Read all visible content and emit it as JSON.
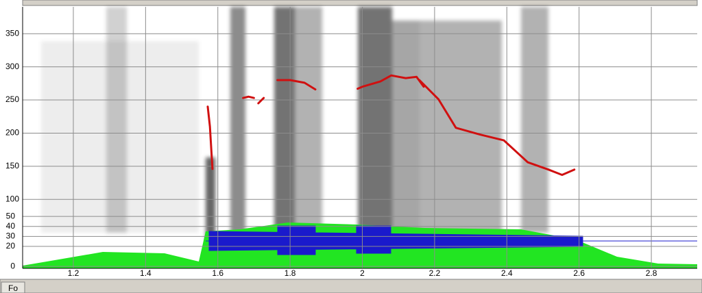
{
  "chart_data": {
    "type": "line",
    "x": [
      1.572,
      1.578,
      1.585,
      null,
      1.67,
      1.685,
      1.7,
      null,
      1.712,
      1.727,
      null,
      1.765,
      1.8,
      1.84,
      1.87,
      null,
      1.987,
      2.0,
      2.05,
      2.08,
      2.12,
      2.15,
      2.17,
      null,
      2.158,
      2.211,
      2.259,
      2.325,
      2.392,
      2.458,
      2.515,
      2.553,
      2.587
    ],
    "series": [
      {
        "color": "#d01010",
        "values": [
          240,
          210,
          146,
          null,
          253,
          255,
          253,
          null,
          245,
          253,
          null,
          280,
          280,
          276,
          266,
          null,
          267,
          270,
          278,
          287,
          283,
          285,
          270,
          null,
          280,
          251,
          208,
          198,
          189,
          156,
          145,
          137,
          145
        ]
      }
    ],
    "xlim": [
      1.0596,
      2.927
    ],
    "xticks": [
      1.2,
      1.4,
      1.6,
      1.8,
      2,
      2.2,
      2.4,
      2.6,
      2.8
    ],
    "ylim": [
      -4,
      390.5
    ],
    "yticks": [
      100,
      150,
      200,
      250,
      300,
      350
    ],
    "y2lim": [
      -2,
      260
    ],
    "y2ticks": [
      0,
      20,
      30,
      40,
      50
    ],
    "grid": true
  },
  "toolbar": {
    "button": "Fo"
  }
}
